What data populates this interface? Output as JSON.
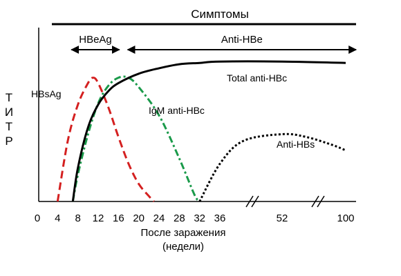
{
  "chart_data": {
    "type": "line",
    "title": "Симптомы",
    "ylabel": "ТИТР",
    "xlabel_line1": "После заражения",
    "xlabel_line2": "(недели)",
    "x_ticks": [
      "0",
      "4",
      "8",
      "12",
      "16",
      "20",
      "24",
      "28",
      "32",
      "36",
      "52",
      "100"
    ],
    "x_axis_breaks": [
      "36-52",
      "52-100"
    ],
    "phases": [
      {
        "label": "HBeAg",
        "from_week": 4,
        "to_week": 17
      },
      {
        "label": "Anti-HBe",
        "from_week": 17,
        "to_week": 100
      }
    ],
    "series": [
      {
        "name": "HBsAg",
        "color": "#d42020",
        "dash": "dashed",
        "points": [
          [
            4,
            0
          ],
          [
            6,
            0.45
          ],
          [
            8,
            0.72
          ],
          [
            10,
            0.88
          ],
          [
            11,
            0.92
          ],
          [
            12,
            0.88
          ],
          [
            14,
            0.7
          ],
          [
            16,
            0.48
          ],
          [
            18,
            0.28
          ],
          [
            20,
            0.13
          ],
          [
            22,
            0.04
          ],
          [
            23,
            0
          ]
        ]
      },
      {
        "name": "IgM  anti-HBc",
        "color": "#1a9a4a",
        "dash": "dashdot",
        "points": [
          [
            7,
            0
          ],
          [
            8,
            0.2
          ],
          [
            10,
            0.5
          ],
          [
            12,
            0.73
          ],
          [
            14,
            0.86
          ],
          [
            16,
            0.92
          ],
          [
            18,
            0.92
          ],
          [
            20,
            0.85
          ],
          [
            24,
            0.64
          ],
          [
            28,
            0.32
          ],
          [
            31,
            0.05
          ],
          [
            32,
            0
          ]
        ]
      },
      {
        "name": "Total anti-HBc",
        "color": "#000000",
        "dash": "solid",
        "points": [
          [
            7,
            0
          ],
          [
            8,
            0.25
          ],
          [
            10,
            0.55
          ],
          [
            12,
            0.72
          ],
          [
            14,
            0.82
          ],
          [
            16,
            0.88
          ],
          [
            20,
            0.95
          ],
          [
            24,
            0.99
          ],
          [
            28,
            1.02
          ],
          [
            32,
            1.03
          ],
          [
            36,
            1.04
          ],
          [
            52,
            1.04
          ],
          [
            100,
            1.03
          ]
        ]
      },
      {
        "name": "Anti-HBs",
        "color": "#000000",
        "dash": "dotted",
        "points": [
          [
            32,
            0
          ],
          [
            36,
            0.28
          ],
          [
            42,
            0.45
          ],
          [
            52,
            0.5
          ],
          [
            70,
            0.48
          ],
          [
            90,
            0.42
          ],
          [
            100,
            0.38
          ]
        ]
      }
    ]
  }
}
